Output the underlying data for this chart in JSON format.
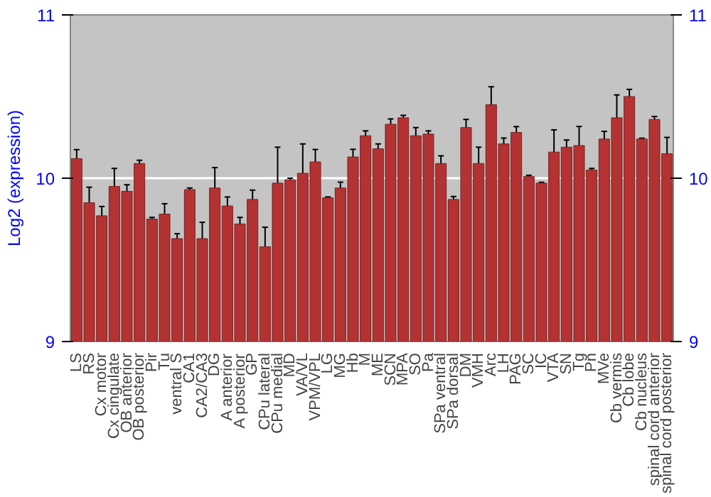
{
  "chart_data": {
    "type": "bar",
    "ylabel": "Log2 (expression)",
    "categories": [
      "LS",
      "RS",
      "Cx motor",
      "Cx cingulate",
      "OB anterior",
      "OB posterior",
      "Pir",
      "Tu",
      "ventral S",
      "CA1",
      "CA2/CA3",
      "DG",
      "A anterior",
      "A posterior",
      "GP",
      "CPu lateral",
      "CPu medial",
      "MD",
      "VA/VL",
      "VPM/VPL",
      "LG",
      "MG",
      "Hb",
      "M",
      "ME",
      "SCN",
      "MPA",
      "SO",
      "Pa",
      "SPa ventral",
      "SPa dorsal",
      "DM",
      "VMH",
      "Arc",
      "LH",
      "PAG",
      "SC",
      "IC",
      "VTA",
      "SN",
      "Tg",
      "Pn",
      "MVe",
      "Cb vermis",
      "Cb lobe",
      "Cb nucleus",
      "spinal cord anterior",
      "spinal cord posterior"
    ],
    "values": [
      10.12,
      9.85,
      9.77,
      9.95,
      9.92,
      10.09,
      9.75,
      9.78,
      9.63,
      9.93,
      9.63,
      9.94,
      9.83,
      9.72,
      9.87,
      9.58,
      9.97,
      9.99,
      10.03,
      10.1,
      9.88,
      9.94,
      10.13,
      10.26,
      10.18,
      10.33,
      10.37,
      10.26,
      10.27,
      10.09,
      9.87,
      10.31,
      10.09,
      10.45,
      10.21,
      10.28,
      10.01,
      9.97,
      10.16,
      10.19,
      10.2,
      10.05,
      10.24,
      10.37,
      10.5,
      10.24,
      10.36,
      10.15
    ],
    "errors": [
      0.055,
      0.095,
      0.057,
      0.11,
      0.04,
      0.02,
      0.01,
      0.064,
      0.03,
      0.01,
      0.1,
      0.125,
      0.055,
      0.04,
      0.057,
      0.12,
      0.22,
      0.01,
      0.18,
      0.076,
      0.005,
      0.036,
      0.047,
      0.03,
      0.03,
      0.033,
      0.015,
      0.05,
      0.02,
      0.047,
      0.018,
      0.05,
      0.1,
      0.11,
      0.036,
      0.036,
      0.008,
      0.005,
      0.136,
      0.044,
      0.117,
      0.01,
      0.047,
      0.14,
      0.044,
      0.005,
      0.018,
      0.1
    ],
    "color": "#b53232",
    "ylim": [
      9,
      11
    ],
    "yticks": [
      9,
      10,
      11
    ],
    "y2lim": [
      9,
      11
    ],
    "y2ticks": [
      9,
      10,
      11
    ],
    "grid": "y"
  }
}
